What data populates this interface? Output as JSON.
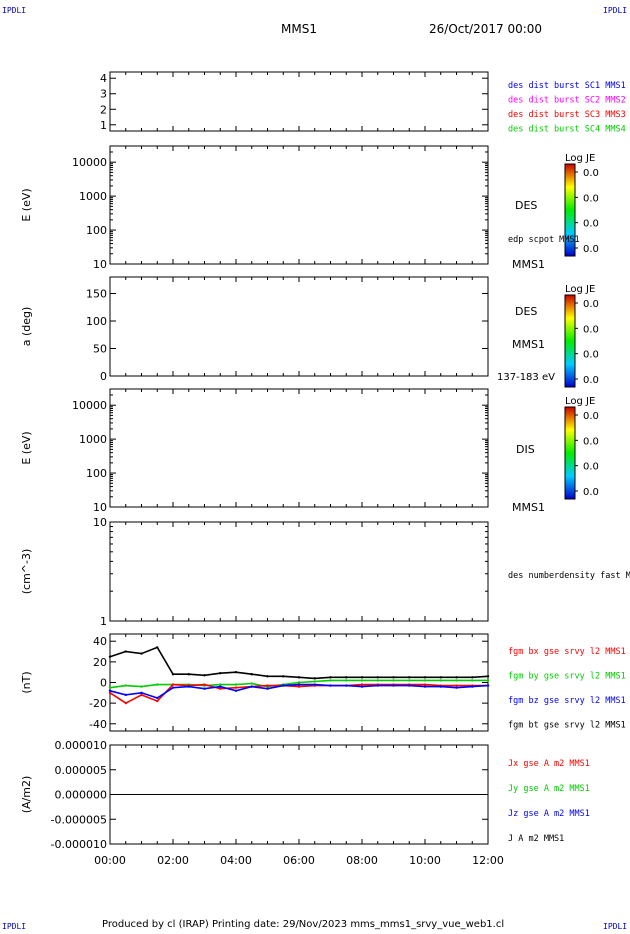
{
  "header": {
    "corner_label": "IPDLI",
    "spacecraft": "MMS1",
    "date": "26/Oct/2017 00:00"
  },
  "footer": {
    "text": "Produced by cl (IRAP)   Printing date: 29/Nov/2023   mms_mms1_srvy_vue_web1.cl"
  },
  "colors": {
    "blue": "#0000ff",
    "magenta": "#ff00ff",
    "red": "#ff0000",
    "green": "#00cc00",
    "black": "#000000"
  },
  "chart_data": [
    {
      "type": "line",
      "panel": "burst",
      "ylim": [
        0.6,
        4.4
      ],
      "yticks": [
        "1",
        "2",
        "3",
        "4"
      ],
      "series": [
        {
          "name": "des dist burst SC1 MMS1",
          "color": "#0000ff",
          "x": [],
          "y": []
        },
        {
          "name": "des dist burst SC2 MMS2",
          "color": "#ff00ff",
          "x": [],
          "y": []
        },
        {
          "name": "des dist burst SC3 MMS3",
          "color": "#ff0000",
          "x": [],
          "y": []
        },
        {
          "name": "des dist burst SC4 MMS4",
          "color": "#00cc00",
          "x": [],
          "y": []
        }
      ]
    },
    {
      "type": "heatmap",
      "panel": "des-energy",
      "ylabel": "E (eV)",
      "yscale": "log",
      "ylim": [
        10,
        30000
      ],
      "yticks": [
        "10",
        "100",
        "1000",
        "10000"
      ],
      "series": [
        {
          "name": "edp scpot MMS1",
          "x": [],
          "y": []
        }
      ],
      "right_labels": [
        "DES",
        "MMS1"
      ],
      "colorbar": {
        "title": "Log JE",
        "ticks": [
          "0.0",
          "0.0",
          "0.0",
          "0.0"
        ]
      }
    },
    {
      "type": "heatmap",
      "panel": "des-pitch",
      "ylabel": "a (deg)",
      "ylim": [
        0,
        180
      ],
      "yticks": [
        "0",
        "50",
        "100",
        "150"
      ],
      "right_labels": [
        "DES",
        "MMS1",
        "137-183 eV"
      ],
      "colorbar": {
        "title": "Log JE",
        "ticks": [
          "0.0",
          "0.0",
          "0.0",
          "0.0"
        ]
      }
    },
    {
      "type": "heatmap",
      "panel": "dis-energy",
      "ylabel": "E (eV)",
      "yscale": "log",
      "ylim": [
        10,
        30000
      ],
      "yticks": [
        "10",
        "100",
        "1000",
        "10000"
      ],
      "right_labels": [
        "DIS",
        "MMS1"
      ],
      "colorbar": {
        "title": "Log JE",
        "ticks": [
          "0.0",
          "0.0",
          "0.0",
          "0.0"
        ]
      }
    },
    {
      "type": "line",
      "panel": "density",
      "ylabel": "(cm^-3)",
      "yscale": "log",
      "ylim": [
        1,
        10
      ],
      "yticks": [
        "1",
        "10"
      ],
      "series": [
        {
          "name": "des numberdensity fast M",
          "color": "#000000",
          "x": [],
          "y": []
        }
      ]
    },
    {
      "type": "line",
      "panel": "magnetic-field",
      "ylabel": "(nT)",
      "ylim": [
        -47,
        47
      ],
      "yticks": [
        "-40",
        "-20",
        "0",
        "20",
        "40"
      ],
      "x": [
        "00:00",
        "00:30",
        "01:00",
        "01:30",
        "02:00",
        "02:30",
        "03:00",
        "03:30",
        "04:00",
        "04:30",
        "05:00",
        "05:30",
        "06:00",
        "06:30",
        "07:00",
        "07:30",
        "08:00",
        "08:30",
        "09:00",
        "09:30",
        "10:00",
        "10:30",
        "11:00",
        "11:30",
        "12:00"
      ],
      "series": [
        {
          "name": "fgm bx gse srvy l2 MMS1",
          "color": "#ff0000",
          "values": [
            -10,
            -20,
            -12,
            -18,
            -2,
            -3,
            -2,
            -6,
            -5,
            -4,
            -3,
            -3,
            -4,
            -3,
            -3,
            -3,
            -2,
            -2,
            -2,
            -2,
            -2,
            -3,
            -3,
            -3,
            -3
          ]
        },
        {
          "name": "fgm by gse srvy l2 MMS1",
          "color": "#00cc00",
          "values": [
            -5,
            -3,
            -4,
            -2,
            -2,
            -2,
            -3,
            -2,
            -2,
            -1,
            -4,
            -2,
            0,
            1,
            2,
            2,
            2,
            2,
            2,
            2,
            2,
            2,
            2,
            2,
            2
          ]
        },
        {
          "name": "fgm bz gse srvy l2 MMS1",
          "color": "#0000ff",
          "values": [
            -8,
            -12,
            -10,
            -15,
            -5,
            -4,
            -6,
            -4,
            -8,
            -4,
            -6,
            -3,
            -2,
            -2,
            -3,
            -3,
            -4,
            -3,
            -3,
            -3,
            -4,
            -4,
            -5,
            -4,
            -3
          ]
        },
        {
          "name": "fgm bt gse srvy l2 MMS1",
          "color": "#000000",
          "values": [
            25,
            30,
            28,
            34,
            8,
            8,
            7,
            9,
            10,
            8,
            6,
            6,
            5,
            4,
            5,
            5,
            5,
            5,
            5,
            5,
            5,
            5,
            5,
            5,
            6
          ]
        }
      ]
    },
    {
      "type": "line",
      "panel": "current-density",
      "ylabel": "(A/m2)",
      "xlabel": "",
      "ylim": [
        -1e-05,
        1e-05
      ],
      "yticks": [
        "-0.000010",
        "-0.000005",
        "0.000000",
        "0.000005",
        "0.000010"
      ],
      "xticks": [
        "00:00",
        "02:00",
        "04:00",
        "06:00",
        "08:00",
        "10:00",
        "12:00"
      ],
      "series": [
        {
          "name": "Jx gse A m2 MMS1",
          "color": "#ff0000",
          "values": []
        },
        {
          "name": "Jy gse A m2 MMS1",
          "color": "#00cc00",
          "values": []
        },
        {
          "name": "Jz gse A m2 MMS1",
          "color": "#0000ff",
          "values": []
        },
        {
          "name": "J A m2 MMS1",
          "color": "#000000",
          "values": []
        }
      ]
    }
  ]
}
